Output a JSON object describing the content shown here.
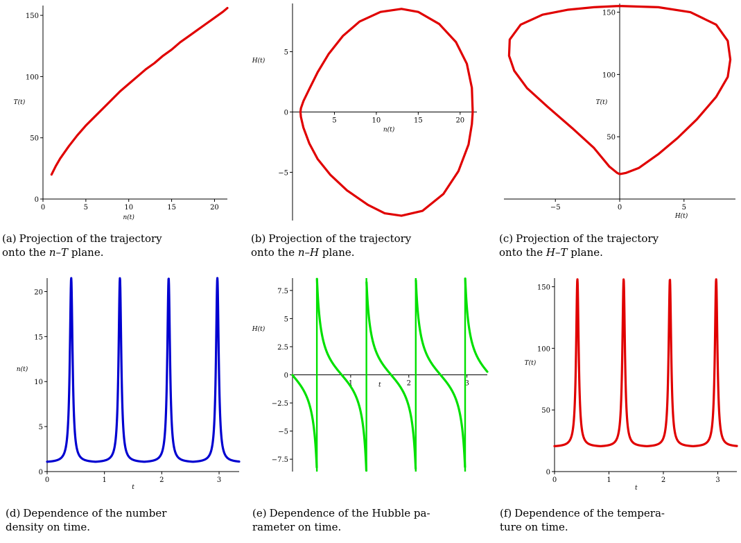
{
  "chart_data": [
    {
      "id": "a",
      "type": "line",
      "xlabel": "n(t)",
      "ylabel": "T(t)",
      "xlim": [
        0,
        21.5
      ],
      "ylim": [
        0,
        158
      ],
      "xticks": [
        0,
        5,
        10,
        15,
        20
      ],
      "yticks": [
        0,
        50,
        100,
        150
      ],
      "color": "#e00000",
      "series": [
        {
          "x": [
            1.0,
            1.5,
            2.0,
            3.0,
            4.0,
            5.0,
            6.0,
            7.0,
            8.0,
            9.0,
            10.0,
            11.0,
            12.0,
            13.0,
            14.0,
            15.0,
            16.0,
            17.0,
            18.0,
            19.0,
            20.0,
            21.0,
            21.5
          ],
          "y": [
            20,
            27,
            33,
            43,
            52,
            60,
            67,
            74,
            81,
            88,
            94,
            100,
            106,
            111,
            117,
            122,
            128,
            133,
            138,
            143,
            148,
            153,
            156
          ]
        }
      ]
    },
    {
      "id": "b",
      "type": "line",
      "xlabel": "n(t)",
      "ylabel": "H(t)",
      "xlim": [
        0,
        22
      ],
      "ylim": [
        -9,
        9
      ],
      "xticks": [
        5,
        10,
        15,
        20
      ],
      "yticks": [
        -5,
        0,
        5
      ],
      "color": "#e00000",
      "series": [
        {
          "x": [
            21.5,
            21.4,
            20.8,
            19.5,
            17.5,
            15.0,
            13.0,
            10.5,
            8.0,
            6.0,
            4.3,
            3.0,
            2.0,
            1.3,
            1.0,
            0.95,
            1.0,
            1.3,
            2.0,
            3.0,
            4.5,
            6.5,
            9.0,
            11.0,
            13.0,
            15.5,
            18.0,
            19.8,
            21.0,
            21.4,
            21.5
          ],
          "y": [
            0,
            2.0,
            4.0,
            5.8,
            7.3,
            8.3,
            8.55,
            8.3,
            7.5,
            6.3,
            4.8,
            3.3,
            1.9,
            0.9,
            0.3,
            0,
            -0.4,
            -1.3,
            -2.6,
            -3.9,
            -5.2,
            -6.5,
            -7.7,
            -8.4,
            -8.6,
            -8.2,
            -6.8,
            -4.9,
            -2.7,
            -1.0,
            0
          ]
        }
      ]
    },
    {
      "id": "c",
      "type": "line",
      "xlabel": "H(t)",
      "ylabel": "T(t)",
      "xlim": [
        -9,
        9
      ],
      "ylim": [
        0,
        157
      ],
      "xticks": [
        -5,
        0,
        5
      ],
      "yticks": [
        50,
        100,
        150
      ],
      "color": "#e00000",
      "series": [
        {
          "x": [
            0,
            -2.0,
            -4.0,
            -6.0,
            -7.7,
            -8.55,
            -8.6,
            -8.2,
            -7.2,
            -5.6,
            -3.7,
            -2.0,
            -0.8,
            -0.2,
            0,
            0.5,
            1.5,
            3.0,
            4.5,
            6.0,
            7.5,
            8.4,
            8.6,
            8.4,
            7.5,
            5.5,
            3.0,
            0
          ],
          "y": [
            155,
            154,
            152,
            148,
            140,
            128,
            115,
            103,
            89,
            74,
            57,
            41,
            26,
            21,
            20,
            21,
            25,
            36,
            49,
            64,
            82,
            98,
            112,
            127,
            140,
            150,
            154,
            155
          ]
        }
      ]
    },
    {
      "id": "d",
      "type": "line",
      "xlabel": "t",
      "ylabel": "n(t)",
      "xlim": [
        0,
        3.35
      ],
      "ylim": [
        0,
        21.5
      ],
      "xticks": [
        0,
        1,
        2,
        3
      ],
      "yticks": [
        0,
        5,
        10,
        15,
        20
      ],
      "color": "#0000d0",
      "period": 0.85,
      "first_peak": 0.42,
      "peak": 21.5,
      "base": 1.0
    },
    {
      "id": "e",
      "type": "line",
      "xlabel": "t",
      "ylabel": "H(t)",
      "xlim": [
        0,
        3.35
      ],
      "ylim": [
        -8.6,
        8.6
      ],
      "xticks": [
        1,
        2,
        3
      ],
      "yticks": [
        -7.5,
        -5,
        -2.5,
        0,
        2.5,
        5,
        7.5
      ],
      "ytick_labels": [
        "−7.5",
        "−5",
        "−2.5",
        "0",
        "2.5",
        "5",
        "7.5"
      ],
      "color": "#00e000",
      "period": 0.85,
      "first_peak": 0.42,
      "amplitude": 8.6
    },
    {
      "id": "f",
      "type": "line",
      "xlabel": "t",
      "ylabel": "T(t)",
      "xlim": [
        0,
        3.35
      ],
      "ylim": [
        0,
        157
      ],
      "xticks": [
        0,
        1,
        2,
        3
      ],
      "yticks": [
        0,
        50,
        100,
        150
      ],
      "color": "#e00000",
      "period": 0.85,
      "first_peak": 0.42,
      "peak": 156,
      "base": 20
    }
  ],
  "captions": {
    "a": {
      "tag": "(a)",
      "line1": "Projection of the trajectory",
      "line2_pre": "onto the ",
      "v1": "n",
      "sep": "–",
      "v2": "T",
      "line2_post": " plane."
    },
    "b": {
      "tag": "(b)",
      "line1": "Projection of the trajectory",
      "line2_pre": "onto the ",
      "v1": "n",
      "sep": "–",
      "v2": "H",
      "line2_post": " plane."
    },
    "c": {
      "tag": "(c)",
      "line1": "Projection of the trajectory",
      "line2_pre": "onto the ",
      "v1": "H",
      "sep": "–",
      "v2": "T",
      "line2_post": " plane."
    },
    "d": {
      "tag": "(d)",
      "line1": "Dependence of the number",
      "line2": "density on time."
    },
    "e": {
      "tag": "(e)",
      "line1": "Dependence of the Hubble pa-",
      "line2": "rameter on time."
    },
    "f": {
      "tag": "(f)",
      "line1": "Dependence of the tempera-",
      "line2": "ture on time."
    }
  }
}
